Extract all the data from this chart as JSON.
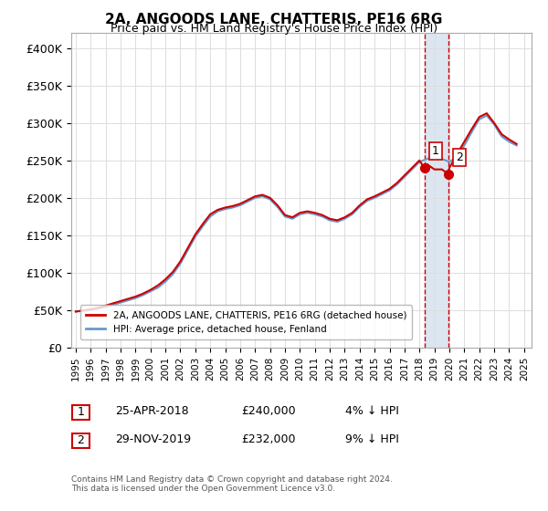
{
  "title": "2A, ANGOODS LANE, CHATTERIS, PE16 6RG",
  "subtitle": "Price paid vs. HM Land Registry's House Price Index (HPI)",
  "ylabel_ticks": [
    "£0",
    "£50K",
    "£100K",
    "£150K",
    "£200K",
    "£250K",
    "£300K",
    "£350K",
    "£400K"
  ],
  "ytick_vals": [
    0,
    50000,
    100000,
    150000,
    200000,
    250000,
    300000,
    350000,
    400000
  ],
  "ylim": [
    0,
    420000
  ],
  "xlim_start": 1995.0,
  "xlim_end": 2025.5,
  "red_color": "#cc0000",
  "blue_color": "#6699cc",
  "highlight_color": "#dce6f1",
  "legend_label_red": "2A, ANGOODS LANE, CHATTERIS, PE16 6RG (detached house)",
  "legend_label_blue": "HPI: Average price, detached house, Fenland",
  "sale1_date": "25-APR-2018",
  "sale1_price": 240000,
  "sale1_label": "1",
  "sale1_year": 2018.32,
  "sale2_date": "29-NOV-2019",
  "sale2_price": 232000,
  "sale2_label": "2",
  "sale2_year": 2019.92,
  "sale1_hpi_pct": "4% ↓ HPI",
  "sale2_hpi_pct": "9% ↓ HPI",
  "footnote": "Contains HM Land Registry data © Crown copyright and database right 2024.\nThis data is licensed under the Open Government Licence v3.0.",
  "hpi_years": [
    1995.0,
    1995.5,
    1996.0,
    1996.5,
    1997.0,
    1997.5,
    1998.0,
    1998.5,
    1999.0,
    1999.5,
    2000.0,
    2000.5,
    2001.0,
    2001.5,
    2002.0,
    2002.5,
    2003.0,
    2003.5,
    2004.0,
    2004.5,
    2005.0,
    2005.5,
    2006.0,
    2006.5,
    2007.0,
    2007.5,
    2008.0,
    2008.5,
    2009.0,
    2009.5,
    2010.0,
    2010.5,
    2011.0,
    2011.5,
    2012.0,
    2012.5,
    2013.0,
    2013.5,
    2014.0,
    2014.5,
    2015.0,
    2015.5,
    2016.0,
    2016.5,
    2017.0,
    2017.5,
    2018.0,
    2018.5,
    2019.0,
    2019.5,
    2020.0,
    2020.5,
    2021.0,
    2021.5,
    2022.0,
    2022.5,
    2023.0,
    2023.5,
    2024.0,
    2024.5
  ],
  "hpi_vals": [
    48000,
    49000,
    50000,
    52000,
    54000,
    57000,
    60000,
    63000,
    66000,
    70000,
    75000,
    80000,
    88000,
    98000,
    112000,
    130000,
    148000,
    162000,
    175000,
    182000,
    185000,
    187000,
    190000,
    195000,
    200000,
    202000,
    198000,
    188000,
    175000,
    172000,
    178000,
    180000,
    178000,
    175000,
    170000,
    168000,
    172000,
    178000,
    188000,
    196000,
    200000,
    205000,
    210000,
    218000,
    228000,
    238000,
    248000,
    252000,
    255000,
    252000,
    248000,
    255000,
    270000,
    288000,
    305000,
    310000,
    298000,
    282000,
    275000,
    270000
  ],
  "red_years": [
    1995.0,
    1995.5,
    1996.0,
    1996.5,
    1997.0,
    1997.5,
    1998.0,
    1998.5,
    1999.0,
    1999.5,
    2000.0,
    2000.5,
    2001.0,
    2001.5,
    2002.0,
    2002.5,
    2003.0,
    2003.5,
    2004.0,
    2004.5,
    2005.0,
    2005.5,
    2006.0,
    2006.5,
    2007.0,
    2007.5,
    2008.0,
    2008.5,
    2009.0,
    2009.5,
    2010.0,
    2010.5,
    2011.0,
    2011.5,
    2012.0,
    2012.5,
    2013.0,
    2013.5,
    2014.0,
    2014.5,
    2015.0,
    2015.5,
    2016.0,
    2016.5,
    2017.0,
    2017.5,
    2018.0,
    2018.32,
    2018.5,
    2019.0,
    2019.5,
    2019.92,
    2020.0,
    2020.5,
    2021.0,
    2021.5,
    2022.0,
    2022.5,
    2023.0,
    2023.5,
    2024.0,
    2024.5
  ],
  "red_vals": [
    48000,
    49500,
    51000,
    53000,
    56000,
    59000,
    62000,
    65000,
    68000,
    72000,
    77000,
    83000,
    91000,
    101000,
    115000,
    133000,
    151000,
    165000,
    178000,
    184000,
    187000,
    189000,
    192000,
    197000,
    202000,
    204000,
    200000,
    190000,
    177000,
    174000,
    180000,
    182000,
    180000,
    177000,
    172000,
    170000,
    174000,
    180000,
    190000,
    198000,
    202000,
    207000,
    212000,
    220000,
    230000,
    240000,
    250000,
    240000,
    245000,
    238000,
    238000,
    232000,
    240000,
    258000,
    275000,
    292000,
    308000,
    313000,
    300000,
    285000,
    278000,
    272000
  ]
}
